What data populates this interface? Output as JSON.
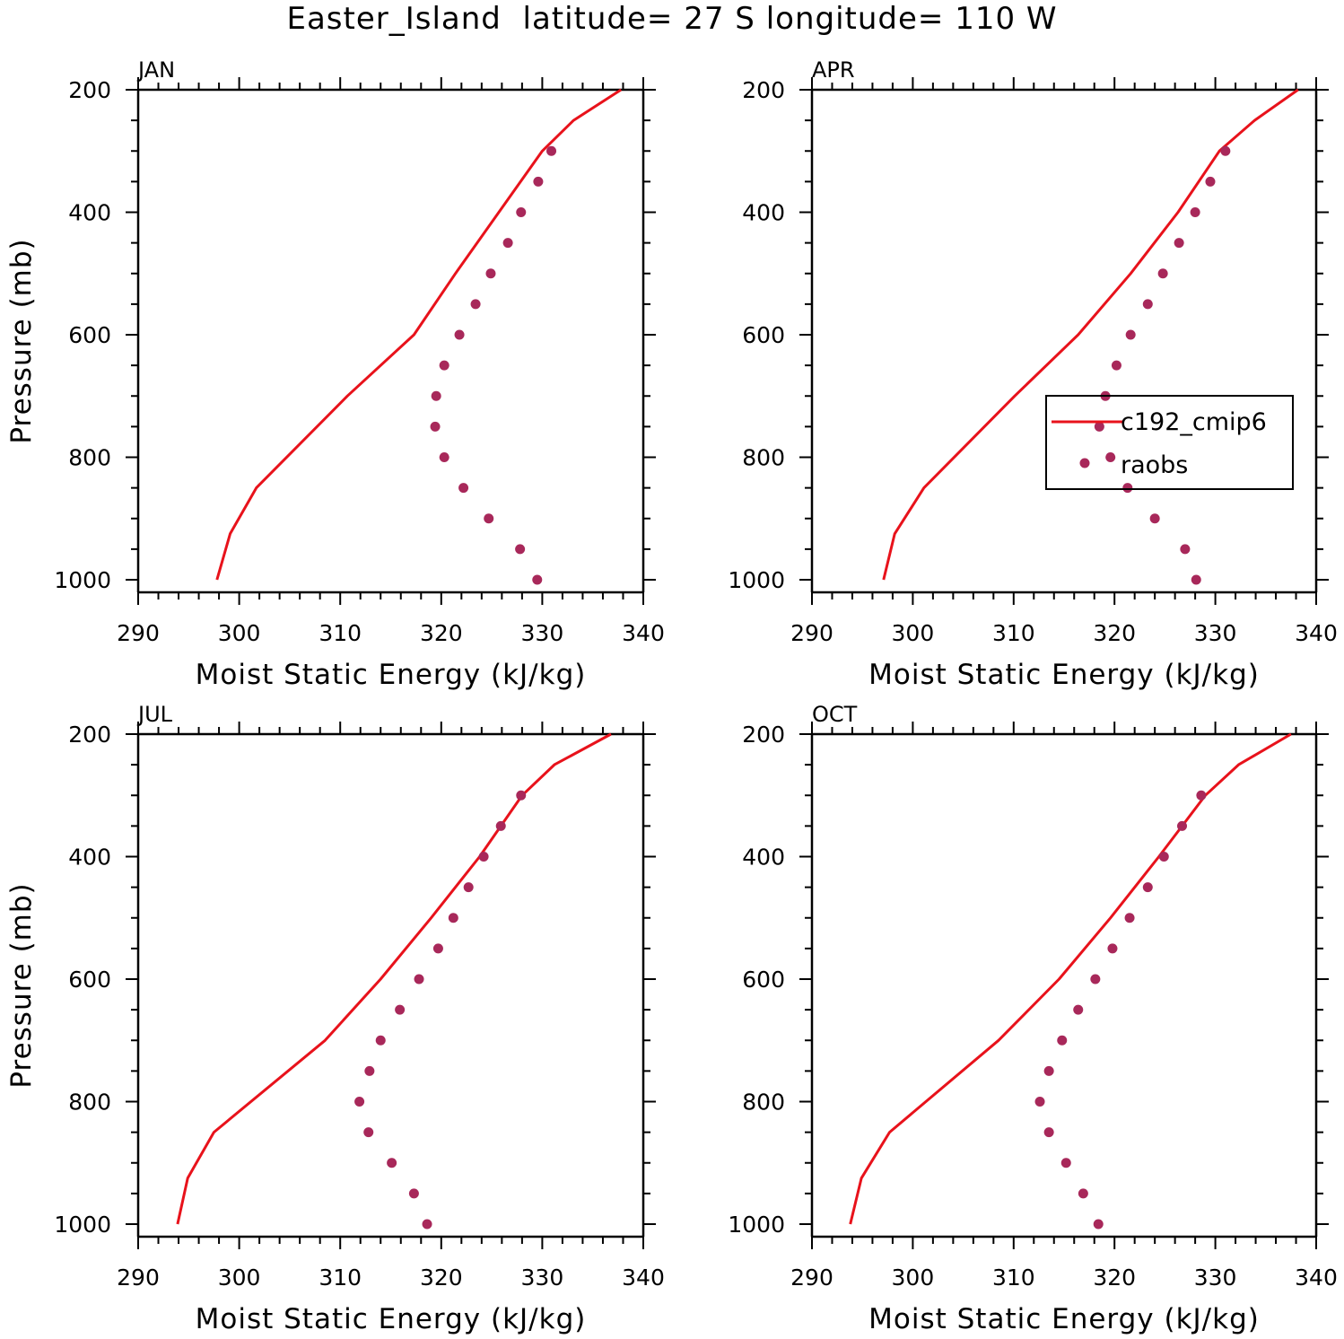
{
  "page": {
    "title": "Easter_Island  latitude= 27 S longitude= 110 W"
  },
  "colors": {
    "model": "#e8121b",
    "obs": "#a8285a",
    "axis": "#000000"
  },
  "legend": {
    "model_label": "c192_cmip6",
    "obs_label": "raobs"
  },
  "chart_data": [
    {
      "type": "line",
      "panel": "JAN",
      "title": "JAN",
      "xlabel": "Moist Static Energy (kJ/kg)",
      "ylabel": "Pressure (mb)",
      "xlim": [
        290,
        340
      ],
      "ylim": [
        1000,
        200
      ],
      "xticks": [
        290,
        300,
        310,
        320,
        330,
        340
      ],
      "yticks": [
        200,
        400,
        600,
        800,
        1000
      ],
      "legend_position": "none",
      "series": [
        {
          "name": "c192_cmip6",
          "style": "line",
          "x": [
            297.8,
            299.1,
            301.7,
            310.7,
            317.3,
            321.4,
            325.7,
            330.0,
            333.1,
            337.8
          ],
          "y": [
            1000,
            925,
            850,
            700,
            600,
            500,
            400,
            300,
            250,
            200
          ]
        },
        {
          "name": "raobs",
          "style": "points",
          "x": [
            329.5,
            327.8,
            324.7,
            322.2,
            320.3,
            319.4,
            319.5,
            320.3,
            321.8,
            323.4,
            324.9,
            326.6,
            327.9,
            329.6,
            330.9
          ],
          "y": [
            1000,
            950,
            900,
            850,
            800,
            750,
            700,
            650,
            600,
            550,
            500,
            450,
            400,
            350,
            300
          ]
        }
      ]
    },
    {
      "type": "line",
      "panel": "APR",
      "title": "APR",
      "xlabel": "Moist Static Energy (kJ/kg)",
      "ylabel": "",
      "xlim": [
        290,
        340
      ],
      "ylim": [
        1000,
        200
      ],
      "xticks": [
        290,
        300,
        310,
        320,
        330,
        340
      ],
      "yticks": [
        200,
        400,
        600,
        800,
        1000
      ],
      "legend_position": "middle-right",
      "series": [
        {
          "name": "c192_cmip6",
          "style": "line",
          "x": [
            297.1,
            298.2,
            301.1,
            310.1,
            316.4,
            321.6,
            326.3,
            330.4,
            333.9,
            338.2
          ],
          "y": [
            1000,
            925,
            850,
            700,
            600,
            500,
            400,
            300,
            250,
            200
          ]
        },
        {
          "name": "raobs",
          "style": "points",
          "x": [
            328.1,
            327.0,
            324.0,
            321.3,
            319.6,
            318.5,
            319.1,
            320.2,
            321.6,
            323.3,
            324.8,
            326.4,
            328.0,
            329.5,
            331.0
          ],
          "y": [
            1000,
            950,
            900,
            850,
            800,
            750,
            700,
            650,
            600,
            550,
            500,
            450,
            400,
            350,
            300
          ]
        }
      ]
    },
    {
      "type": "line",
      "panel": "JUL",
      "title": "JUL",
      "xlabel": "Moist Static Energy (kJ/kg)",
      "ylabel": "Pressure (mb)",
      "xlim": [
        290,
        340
      ],
      "ylim": [
        1000,
        200
      ],
      "xticks": [
        290,
        300,
        310,
        320,
        330,
        340
      ],
      "yticks": [
        200,
        400,
        600,
        800,
        1000
      ],
      "legend_position": "none",
      "series": [
        {
          "name": "c192_cmip6",
          "style": "line",
          "x": [
            293.9,
            294.9,
            297.5,
            308.5,
            314.0,
            319.0,
            323.8,
            328.0,
            331.2,
            336.8
          ],
          "y": [
            1000,
            925,
            850,
            700,
            600,
            500,
            400,
            300,
            250,
            200
          ]
        },
        {
          "name": "raobs",
          "style": "points",
          "x": [
            318.6,
            317.3,
            315.1,
            312.8,
            311.9,
            312.9,
            314.0,
            315.9,
            317.8,
            319.7,
            321.2,
            322.7,
            324.2,
            325.9,
            327.9
          ],
          "y": [
            1000,
            950,
            900,
            850,
            800,
            750,
            700,
            650,
            600,
            550,
            500,
            450,
            400,
            350,
            300
          ]
        }
      ]
    },
    {
      "type": "line",
      "panel": "OCT",
      "title": "OCT",
      "xlabel": "Moist Static Energy (kJ/kg)",
      "ylabel": "",
      "xlim": [
        290,
        340
      ],
      "ylim": [
        1000,
        200
      ],
      "xticks": [
        290,
        300,
        310,
        320,
        330,
        340
      ],
      "yticks": [
        200,
        400,
        600,
        800,
        1000
      ],
      "legend_position": "none",
      "series": [
        {
          "name": "c192_cmip6",
          "style": "line",
          "x": [
            293.8,
            294.9,
            297.7,
            308.5,
            314.5,
            319.6,
            324.4,
            329.0,
            332.3,
            337.5
          ],
          "y": [
            1000,
            925,
            850,
            700,
            600,
            500,
            400,
            300,
            250,
            200
          ]
        },
        {
          "name": "raobs",
          "style": "points",
          "x": [
            318.4,
            316.9,
            315.2,
            313.5,
            312.6,
            313.5,
            314.8,
            316.4,
            318.1,
            319.8,
            321.5,
            323.3,
            324.9,
            326.7,
            328.6
          ],
          "y": [
            1000,
            950,
            900,
            850,
            800,
            750,
            700,
            650,
            600,
            550,
            500,
            450,
            400,
            350,
            300
          ]
        }
      ]
    }
  ]
}
